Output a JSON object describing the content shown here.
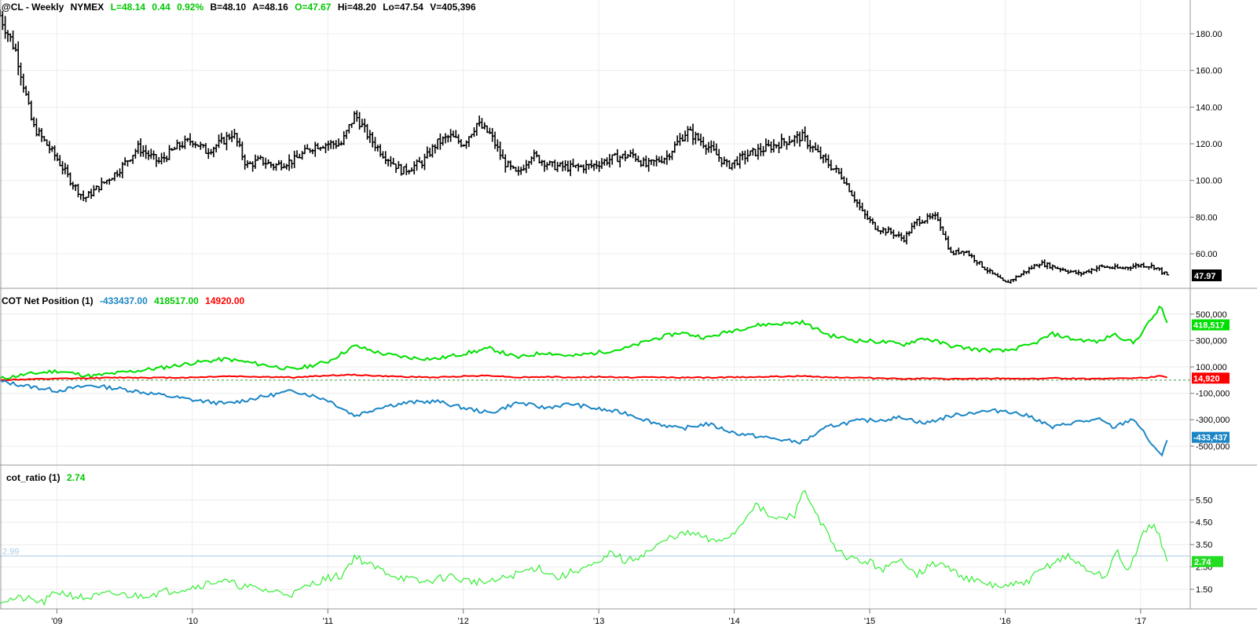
{
  "price_header": {
    "symbol": "@CL - Weekly",
    "exchange": "NYMEX",
    "last": "L=48.14",
    "change": "0.44",
    "change_pct": "0.92%",
    "bid": "B=48.10",
    "ask": "A=48.16",
    "open": "O=47.67",
    "high": "Hi=48.20",
    "low": "Lo=47.54",
    "volume": "V=405,396"
  },
  "cot_header": {
    "title": "COT Net Position (1)",
    "v1": "-433437.00",
    "v2": "418517.00",
    "v3": "14920.00"
  },
  "ratio_header": {
    "title": "cot_ratio (1)",
    "value": "2.74"
  },
  "colors": {
    "price": "#000000",
    "commercials": "#1b86c6",
    "large_specs": "#00e000",
    "small_specs": "#ff0000",
    "ratio": "#33ee33",
    "ref_line": "#a9cbe6"
  },
  "chart_data": [
    {
      "type": "ohlc",
      "title": "@CL - Weekly NYMEX",
      "yticks": [
        60,
        80,
        100,
        120,
        140,
        160,
        180
      ],
      "ytick_labels": [
        "60.00",
        "80.00",
        "100.00",
        "120.00",
        "140.00",
        "160.00",
        "180.00"
      ],
      "last_value_label": "47.97",
      "x": [
        2008.58,
        2008.7,
        2008.82,
        2009.0,
        2009.1,
        2009.2,
        2009.3,
        2009.45,
        2009.6,
        2009.75,
        2009.9,
        2010.0,
        2010.1,
        2010.2,
        2010.3,
        2010.4,
        2010.5,
        2010.6,
        2010.75,
        2010.9,
        2011.0,
        2011.1,
        2011.2,
        2011.3,
        2011.4,
        2011.55,
        2011.7,
        2011.8,
        2011.9,
        2012.0,
        2012.1,
        2012.2,
        2012.3,
        2012.4,
        2012.5,
        2012.65,
        2012.8,
        2012.95,
        2013.1,
        2013.25,
        2013.35,
        2013.5,
        2013.65,
        2013.8,
        2013.95,
        2014.1,
        2014.25,
        2014.4,
        2014.5,
        2014.65,
        2014.8,
        2014.95,
        2015.05,
        2015.15,
        2015.25,
        2015.35,
        2015.5,
        2015.6,
        2015.7,
        2015.85,
        2016.0,
        2016.1,
        2016.25,
        2016.4,
        2016.55,
        2016.7,
        2016.85,
        2017.0,
        2017.1,
        2017.2
      ],
      "close": [
        190,
        170,
        130,
        112,
        100,
        90,
        96,
        105,
        118,
        110,
        119,
        122,
        116,
        120,
        126,
        108,
        111,
        108,
        111,
        119,
        120,
        120,
        136,
        124,
        115,
        105,
        110,
        120,
        124,
        120,
        131,
        125,
        110,
        103,
        114,
        108,
        107,
        108,
        112,
        114,
        108,
        113,
        127,
        119,
        108,
        114,
        118,
        122,
        124,
        112,
        102,
        82,
        74,
        72,
        68,
        78,
        80,
        60,
        62,
        52,
        44,
        48,
        55,
        52,
        49,
        53,
        52,
        54,
        53,
        48
      ]
    },
    {
      "type": "line",
      "title": "COT Net Position (1)",
      "yticks": [
        -500000,
        -300000,
        -100000,
        100000,
        300000,
        500000
      ],
      "ytick_labels": [
        "-500,000",
        "-300,000",
        "-100,000",
        "100,000",
        "300,000",
        "500,000"
      ],
      "last_value_labels": [
        "418,517",
        "14,920",
        "-433,437"
      ],
      "x": [
        2008.58,
        2008.75,
        2009.0,
        2009.25,
        2009.5,
        2009.75,
        2010.0,
        2010.25,
        2010.5,
        2010.75,
        2011.0,
        2011.2,
        2011.4,
        2011.6,
        2011.8,
        2012.0,
        2012.2,
        2012.4,
        2012.6,
        2012.8,
        2013.0,
        2013.2,
        2013.4,
        2013.6,
        2013.8,
        2014.0,
        2014.2,
        2014.4,
        2014.5,
        2014.7,
        2014.9,
        2015.1,
        2015.25,
        2015.4,
        2015.6,
        2015.8,
        2016.0,
        2016.2,
        2016.35,
        2016.5,
        2016.7,
        2016.8,
        2016.95,
        2017.05,
        2017.15,
        2017.2
      ],
      "series": [
        {
          "values": [
            10000,
            40000,
            70000,
            30000,
            60000,
            90000,
            130000,
            160000,
            120000,
            80000,
            140000,
            260000,
            200000,
            170000,
            160000,
            200000,
            240000,
            170000,
            210000,
            180000,
            210000,
            240000,
            310000,
            360000,
            320000,
            380000,
            420000,
            430000,
            440000,
            340000,
            300000,
            290000,
            270000,
            320000,
            260000,
            230000,
            220000,
            270000,
            350000,
            310000,
            290000,
            350000,
            280000,
            420000,
            560000,
            418517
          ]
        },
        {
          "values": [
            0,
            5000,
            10000,
            15000,
            20000,
            18000,
            20000,
            30000,
            25000,
            20000,
            35000,
            40000,
            30000,
            25000,
            20000,
            30000,
            35000,
            20000,
            25000,
            20000,
            25000,
            20000,
            22000,
            20000,
            18000,
            22000,
            25000,
            28000,
            30000,
            22000,
            18000,
            15000,
            10000,
            12000,
            8000,
            10000,
            12000,
            10000,
            15000,
            12000,
            10000,
            15000,
            14000,
            20000,
            30000,
            14920
          ]
        },
        {
          "values": [
            -10000,
            -40000,
            -80000,
            -40000,
            -70000,
            -110000,
            -150000,
            -180000,
            -130000,
            -80000,
            -150000,
            -270000,
            -200000,
            -170000,
            -160000,
            -210000,
            -250000,
            -170000,
            -210000,
            -180000,
            -220000,
            -250000,
            -320000,
            -370000,
            -330000,
            -400000,
            -430000,
            -460000,
            -470000,
            -350000,
            -310000,
            -300000,
            -280000,
            -330000,
            -270000,
            -240000,
            -230000,
            -280000,
            -360000,
            -320000,
            -300000,
            -360000,
            -290000,
            -440000,
            -580000,
            -433437
          ]
        }
      ]
    },
    {
      "type": "line",
      "title": "cot_ratio (1)",
      "yticks": [
        1.5,
        2.5,
        3.5,
        4.5,
        5.5
      ],
      "ytick_labels": [
        "1.50",
        "2.50",
        "3.50",
        "4.50",
        "5.50"
      ],
      "reference_value": 2.99,
      "reference_label": "2.99",
      "last_value_label": "2.74",
      "x": [
        2008.58,
        2008.75,
        2008.9,
        2009.0,
        2009.2,
        2009.4,
        2009.6,
        2009.8,
        2010.0,
        2010.2,
        2010.4,
        2010.6,
        2010.75,
        2010.9,
        2011.0,
        2011.1,
        2011.2,
        2011.3,
        2011.5,
        2011.7,
        2011.9,
        2012.0,
        2012.2,
        2012.4,
        2012.55,
        2012.7,
        2012.85,
        2013.0,
        2013.1,
        2013.2,
        2013.4,
        2013.55,
        2013.7,
        2013.85,
        2014.0,
        2014.15,
        2014.3,
        2014.45,
        2014.5,
        2014.6,
        2014.75,
        2014.9,
        2015.0,
        2015.1,
        2015.25,
        2015.35,
        2015.5,
        2015.65,
        2015.8,
        2016.0,
        2016.15,
        2016.3,
        2016.45,
        2016.6,
        2016.75,
        2016.82,
        2016.9,
        2017.0,
        2017.1,
        2017.15,
        2017.2
      ],
      "values": [
        1.0,
        1.1,
        0.9,
        1.4,
        1.1,
        1.3,
        1.2,
        1.4,
        1.6,
        1.9,
        1.6,
        1.4,
        1.3,
        1.8,
        2.0,
        2.1,
        3.0,
        2.6,
        2.1,
        1.8,
        2.1,
        1.9,
        1.8,
        2.2,
        2.5,
        2.0,
        2.4,
        2.6,
        3.2,
        2.7,
        3.3,
        3.9,
        4.0,
        3.6,
        4.0,
        5.3,
        4.6,
        4.8,
        6.0,
        5.0,
        3.2,
        2.8,
        2.7,
        2.4,
        2.8,
        2.2,
        2.7,
        2.2,
        1.8,
        1.6,
        1.8,
        2.5,
        3.0,
        2.4,
        2.0,
        3.4,
        2.1,
        3.8,
        4.5,
        3.6,
        2.74
      ]
    }
  ],
  "x_axis": {
    "labels": [
      "'09",
      "'10",
      "'11",
      "'12",
      "'13",
      "'14",
      "'15",
      "'16",
      "'17"
    ],
    "years": [
      2009,
      2010,
      2011,
      2012,
      2013,
      2014,
      2015,
      2016,
      2017
    ]
  }
}
